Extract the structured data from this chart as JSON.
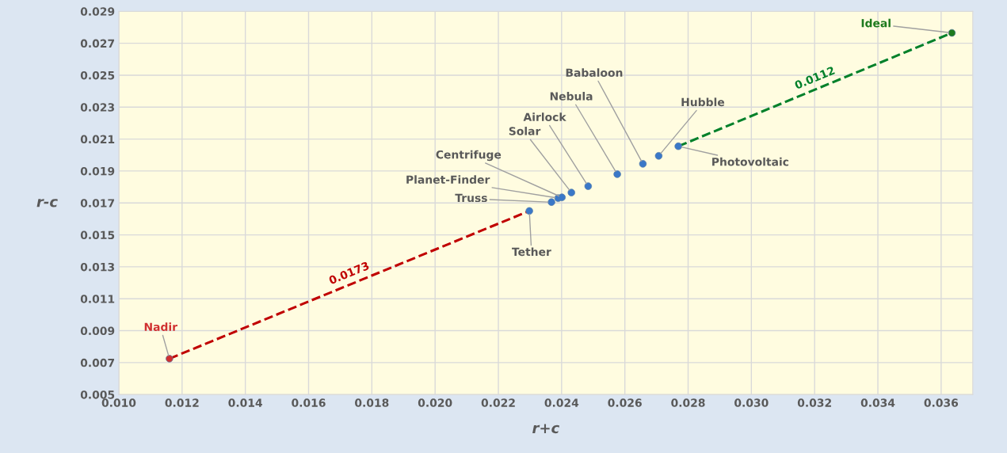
{
  "chart_data": {
    "type": "scatter",
    "xlabel": "r+c",
    "ylabel": "r-c",
    "xlim": [
      0.01,
      0.037
    ],
    "xticks": [
      {
        "value": 0.01,
        "label": "0.010"
      },
      {
        "value": 0.012,
        "label": "0.012"
      },
      {
        "value": 0.014,
        "label": "0.014"
      },
      {
        "value": 0.016,
        "label": "0.016"
      },
      {
        "value": 0.018,
        "label": "0.018"
      },
      {
        "value": 0.02,
        "label": "0.020"
      },
      {
        "value": 0.022,
        "label": "0.022"
      },
      {
        "value": 0.024,
        "label": "0.024"
      },
      {
        "value": 0.026,
        "label": "0.026"
      },
      {
        "value": 0.028,
        "label": "0.028"
      },
      {
        "value": 0.03,
        "label": "0.030"
      },
      {
        "value": 0.032,
        "label": "0.032"
      },
      {
        "value": 0.034,
        "label": "0.034"
      },
      {
        "value": 0.036,
        "label": "0.036"
      }
    ],
    "ylim": [
      0.005,
      0.029
    ],
    "yticks": [
      0.005,
      0.007,
      0.009,
      0.011,
      0.013,
      0.015,
      0.017,
      0.019,
      0.021,
      0.023,
      0.025,
      0.027,
      0.029
    ],
    "grid": true,
    "series": [
      {
        "type": "line",
        "line_style": "dashed",
        "color": "#c00000",
        "x": [
          0.0116,
          0.02298
        ],
        "values": [
          0.00725,
          0.0165
        ]
      },
      {
        "type": "line",
        "line_style": "dashed",
        "color": "#00802a",
        "x": [
          0.02769,
          0.03634
        ],
        "values": [
          0.02055,
          0.02765
        ]
      },
      {
        "marker": "circle",
        "x": [
          0.0116,
          0.02298,
          0.02368,
          0.02389,
          0.02401,
          0.02431,
          0.02484,
          0.02576,
          0.02657,
          0.02707,
          0.02769,
          0.03634
        ],
        "values": [
          0.00725,
          0.0165,
          0.01705,
          0.0173,
          0.01735,
          0.01765,
          0.01805,
          0.0188,
          0.01945,
          0.01995,
          0.02055,
          0.02765
        ],
        "colors": [
          "#d03030",
          "#3a78c8",
          "#3a78c8",
          "#3a78c8",
          "#3a78c8",
          "#3a78c8",
          "#3a78c8",
          "#3a78c8",
          "#3a78c8",
          "#3a78c8",
          "#3a78c8",
          "#1d7a1d"
        ]
      }
    ],
    "annotations": [
      {
        "text": "Nadir",
        "x": 0.0116,
        "y": 0.00725
      },
      {
        "text": "Tether",
        "x": 0.02298,
        "y": 0.0165
      },
      {
        "text": "Truss",
        "x": 0.02368,
        "y": 0.01705
      },
      {
        "text": "Planet-Finder",
        "x": 0.02389,
        "y": 0.0173
      },
      {
        "text": "Centrifuge",
        "x": 0.02401,
        "y": 0.01735
      },
      {
        "text": "Solar",
        "x": 0.02431,
        "y": 0.01765
      },
      {
        "text": "Airlock",
        "x": 0.02484,
        "y": 0.01805
      },
      {
        "text": "Nebula",
        "x": 0.02576,
        "y": 0.0188
      },
      {
        "text": "Babaloon",
        "x": 0.02657,
        "y": 0.01945
      },
      {
        "text": "Hubble",
        "x": 0.02707,
        "y": 0.01995
      },
      {
        "text": "Photovoltaic",
        "x": 0.02769,
        "y": 0.02055
      },
      {
        "text": "Ideal",
        "x": 0.03634,
        "y": 0.02765
      },
      {
        "text": "0.0173",
        "x": 0.01729,
        "y": 0.011875
      },
      {
        "text": "0.0112",
        "x": 0.032015,
        "y": 0.0241
      }
    ]
  }
}
